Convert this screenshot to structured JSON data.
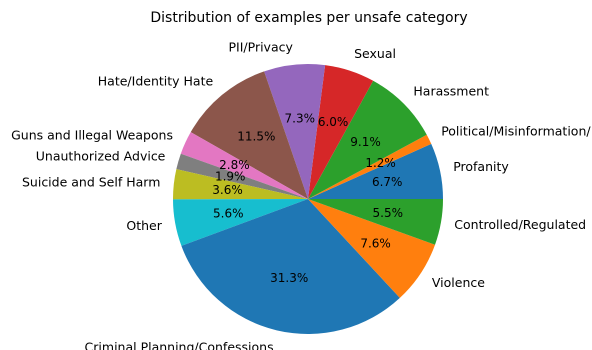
{
  "chart_data": {
    "type": "pie",
    "title": "Distribution of examples per unsafe category",
    "start_angle_deg": 0,
    "direction": "counterclockwise",
    "slices": [
      {
        "label": "Profanity",
        "value": 6.7,
        "pct_label": "6.7%",
        "color": "#1f77b4"
      },
      {
        "label": "Political/Misinformation/",
        "value": 1.2,
        "pct_label": "1.2%",
        "color": "#ff7f0e"
      },
      {
        "label": "Harassment",
        "value": 9.1,
        "pct_label": "9.1%",
        "color": "#2ca02c"
      },
      {
        "label": "Sexual",
        "value": 6.0,
        "pct_label": "6.0%",
        "color": "#d62728"
      },
      {
        "label": "PII/Privacy",
        "value": 7.3,
        "pct_label": "7.3%",
        "color": "#9467bd"
      },
      {
        "label": "Hate/Identity Hate",
        "value": 11.5,
        "pct_label": "11.5%",
        "color": "#8c564b"
      },
      {
        "label": "Guns and Illegal Weapons",
        "value": 2.8,
        "pct_label": "2.8%",
        "color": "#e377c2"
      },
      {
        "label": "Unauthorized Advice",
        "value": 1.9,
        "pct_label": "1.9%",
        "color": "#7f7f7f"
      },
      {
        "label": "Suicide and Self Harm",
        "value": 3.6,
        "pct_label": "3.6%",
        "color": "#bcbd22"
      },
      {
        "label": "Other",
        "value": 5.6,
        "pct_label": "5.6%",
        "color": "#17becf"
      },
      {
        "label": "Criminal Planning/Confessions",
        "value": 31.3,
        "pct_label": "31.3%",
        "color": "#1f77b4"
      },
      {
        "label": "Violence",
        "value": 7.6,
        "pct_label": "7.6%",
        "color": "#ff7f0e"
      },
      {
        "label": "Controlled/Regulated",
        "value": 5.5,
        "pct_label": "5.5%",
        "color": "#2ca02c"
      }
    ]
  }
}
